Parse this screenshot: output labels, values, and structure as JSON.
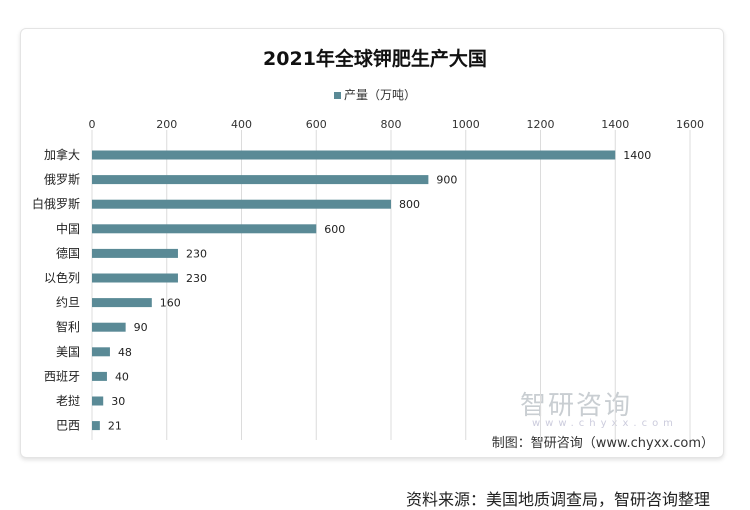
{
  "chart_data": {
    "type": "bar",
    "orientation": "horizontal",
    "title": "2021年全球钾肥生产大国",
    "legend": "产量（万吨）",
    "legend_position": "top",
    "categories": [
      "加拿大",
      "俄罗斯",
      "白俄罗斯",
      "中国",
      "德国",
      "以色列",
      "约旦",
      "智利",
      "美国",
      "西班牙",
      "老挝",
      "巴西"
    ],
    "series": [
      {
        "name": "产量（万吨）",
        "values": [
          1400,
          900,
          800,
          600,
          230,
          230,
          160,
          90,
          48,
          40,
          30,
          21
        ],
        "color": "#5a8a96"
      }
    ],
    "xlim": [
      0,
      1600
    ],
    "xticks": [
      0,
      200,
      400,
      600,
      800,
      1000,
      1200,
      1400,
      1600
    ],
    "axis_position": "top",
    "grid": true
  },
  "credit": "制图：智研咨询（www.chyxx.com）",
  "watermark": "智研咨询",
  "watermark_url": "www.chyxx.com",
  "source": "资料来源：美国地质调查局，智研咨询整理"
}
